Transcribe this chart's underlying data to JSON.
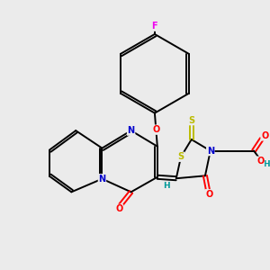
{
  "background_color": "#ebebeb",
  "atom_colors": {
    "C": "#000000",
    "N": "#0000cc",
    "O": "#ff0000",
    "S": "#bbbb00",
    "F": "#ee00ee",
    "H": "#009999"
  }
}
